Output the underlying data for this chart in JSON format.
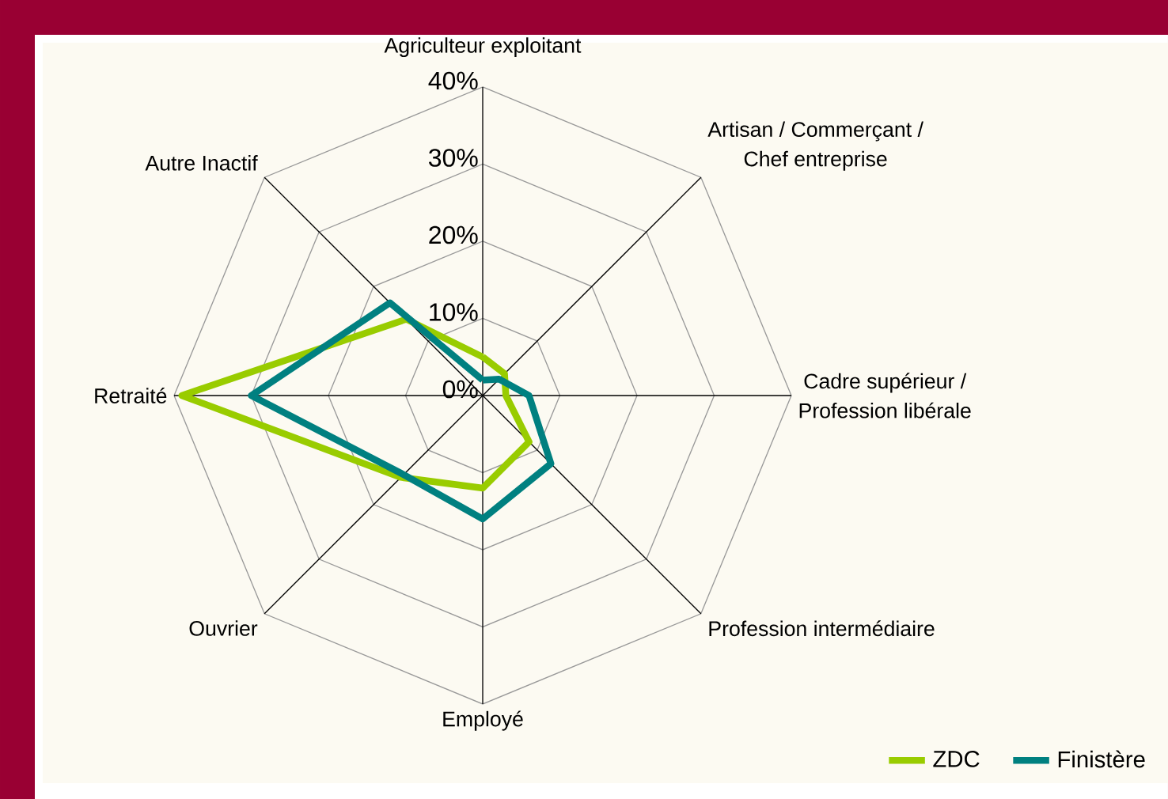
{
  "chart_data": {
    "type": "radar",
    "categories": [
      "Agriculteur exploitant",
      "Artisan / Commerçant / Chef entreprise",
      "Cadre supérieur / Profession libérale",
      "Profession intermédiaire",
      "Employé",
      "Ouvrier",
      "Retraité",
      "Autre Inactif"
    ],
    "series": [
      {
        "name": "ZDC",
        "color": "#99cc00",
        "values": [
          5,
          4,
          3,
          8.5,
          12,
          15,
          39,
          14
        ]
      },
      {
        "name": "Finistère",
        "color": "#008080",
        "values": [
          2,
          3,
          6,
          12.5,
          16,
          14.5,
          30,
          17
        ]
      }
    ],
    "ylim": [
      0,
      40
    ],
    "yticks": [
      {
        "value": 0,
        "label": "0%"
      },
      {
        "value": 10,
        "label": "10%"
      },
      {
        "value": 20,
        "label": "20%"
      },
      {
        "value": 30,
        "label": "30%"
      },
      {
        "value": 40,
        "label": "40%"
      }
    ],
    "grid": true,
    "legend": "bottom right"
  }
}
